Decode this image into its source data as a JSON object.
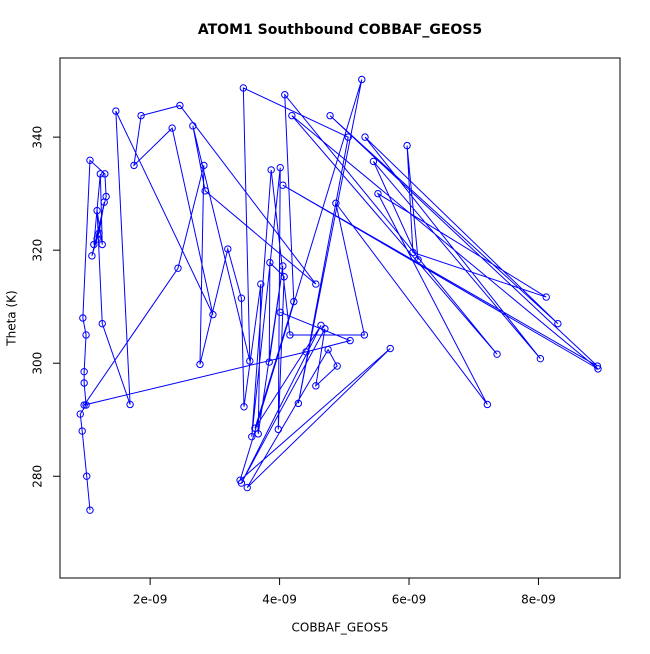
{
  "chart_data": {
    "type": "line",
    "markers": true,
    "color": "#0000ff",
    "title": "ATOM1 Southbound COBBAF_GEOS5",
    "x_label": "COBBAF_GEOS5",
    "y_label": "Theta (K)",
    "x": [
      1.07e-09,
      1.02e-09,
      9.5e-10,
      9.2e-10,
      1.01e-09,
      9.8e-10,
      9.8e-10,
      1.01e-09,
      9.6e-10,
      1.07e-09,
      1.3e-09,
      1.32e-09,
      1.1e-09,
      1.18e-09,
      1.29e-09,
      1.21e-09,
      1.13e-09,
      1.23e-09,
      1.26e-09,
      1.18e-09,
      1.26e-09,
      1.69e-09,
      1.47e-09,
      2.97e-09,
      2.34e-09,
      1.75e-09,
      1.86e-09,
      2.46e-09,
      4.56e-09,
      2.85e-09,
      2.66e-09,
      3.54e-09,
      3.44e-09,
      5.06e-09,
      4.29e-09,
      5.27e-09,
      3.39e-09,
      5.71e-09,
      3.5e-09,
      4.75e-09,
      4.89e-09,
      4.56e-09,
      4.7e-09,
      3.41e-09,
      4.64e-09,
      3.62e-09,
      4.22e-09,
      4.08e-09,
      7.36e-09,
      4.19e-09,
      8.92e-09,
      4.05e-09,
      8.91e-09,
      4.78e-09,
      8.3e-09,
      5.32e-09,
      8.03e-09,
      5.45e-09,
      6.14e-09,
      5.97e-09,
      6.06e-09,
      8.12e-09,
      5.52e-09,
      7.21e-09,
      4.87e-09,
      5.31e-09,
      4.16e-09,
      3.87e-09,
      3.57e-09,
      4.01e-09,
      3.98e-09,
      4.07e-09,
      3.85e-09,
      3.84e-09,
      4.05e-09,
      3.67e-09,
      3.71e-09,
      3.45e-09,
      3.41e-09,
      3.2e-09,
      2.77e-09,
      2.83e-09,
      2.43e-09,
      9.8e-10,
      4.41e-09,
      5.09e-09,
      4.01e-09
    ],
    "values": [
      274,
      280,
      288,
      291,
      292.6,
      296.5,
      298.5,
      305,
      308,
      335.9,
      333.5,
      329.5,
      319,
      322,
      328.5,
      323,
      321,
      333.5,
      321,
      327,
      307,
      292.7,
      344.6,
      308.6,
      341.6,
      335,
      343.8,
      345.6,
      314,
      330.5,
      342,
      300.4,
      348.7,
      340,
      292.9,
      350.2,
      279.3,
      302.6,
      278,
      302.4,
      299.5,
      296,
      306.1,
      278.8,
      306.7,
      288.5,
      310.9,
      347.5,
      301.6,
      343.8,
      299,
      331.5,
      299.5,
      343.8,
      307,
      340,
      300.8,
      335.7,
      318.3,
      338.5,
      319.6,
      311.7,
      330,
      292.7,
      328.3,
      305,
      305,
      334.2,
      287,
      334.6,
      288.3,
      315.3,
      317.8,
      300.2,
      317.2,
      287.5,
      314,
      292.3,
      311.5,
      320.2,
      299.8,
      335,
      316.8,
      292.6,
      302,
      304,
      309
    ],
    "xlim": [
      6.07e-10,
      9.26e-09
    ],
    "ylim": [
      262,
      354
    ],
    "xticks": [
      {
        "value": 2e-09,
        "label": "2e-09"
      },
      {
        "value": 4e-09,
        "label": "4e-09"
      },
      {
        "value": 6e-09,
        "label": "6e-09"
      },
      {
        "value": 8e-09,
        "label": "8e-09"
      }
    ],
    "yticks": [
      280,
      300,
      320,
      340
    ]
  }
}
